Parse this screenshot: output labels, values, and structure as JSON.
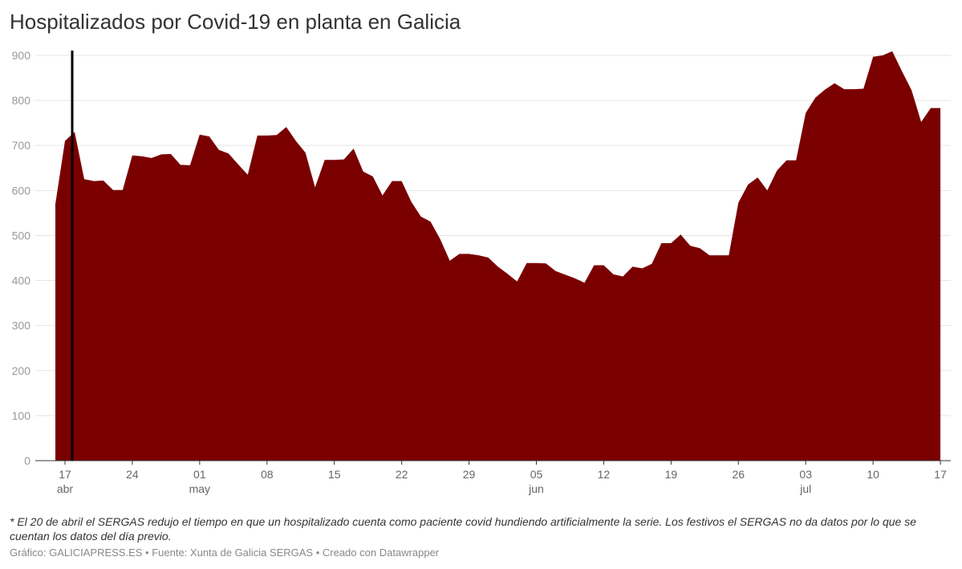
{
  "title": "Hospitalizados por Covid-19 en planta en Galicia",
  "note": "* El 20 de abril el SERGAS redujo el tiempo en que un hospitalizado cuenta como paciente covid hundiendo artificialmente la serie. Los festivos el SERGAS no da datos por lo que se cuentan los datos del día previo.",
  "credit": "Gráfico: GALICIAPRESS.ES • Fuente: Xunta de Galicia SERGAS • Creado con Datawrapper",
  "chart_data": {
    "type": "area",
    "title": "Hospitalizados por Covid-19 en planta en Galicia",
    "x_start": "16 abr",
    "x_end": "17 jul",
    "x_step": "1 día",
    "ylim": [
      0,
      900
    ],
    "yticks": [
      0,
      100,
      200,
      300,
      400,
      500,
      600,
      700,
      800,
      900
    ],
    "grid": true,
    "color": "#7a0000",
    "xticks": [
      {
        "day": 1,
        "label": "17",
        "month": "abr"
      },
      {
        "day": 8,
        "label": "24",
        "month": ""
      },
      {
        "day": 15,
        "label": "01",
        "month": "may"
      },
      {
        "day": 22,
        "label": "08",
        "month": ""
      },
      {
        "day": 29,
        "label": "15",
        "month": ""
      },
      {
        "day": 36,
        "label": "22",
        "month": ""
      },
      {
        "day": 43,
        "label": "29",
        "month": ""
      },
      {
        "day": 50,
        "label": "05",
        "month": "jun"
      },
      {
        "day": 57,
        "label": "12",
        "month": ""
      },
      {
        "day": 64,
        "label": "19",
        "month": ""
      },
      {
        "day": 71,
        "label": "26",
        "month": ""
      },
      {
        "day": 78,
        "label": "03",
        "month": "jul"
      },
      {
        "day": 85,
        "label": "10",
        "month": ""
      },
      {
        "day": 92,
        "label": "17",
        "month": ""
      }
    ],
    "values": [
      570,
      710,
      730,
      625,
      621,
      622,
      601,
      601,
      678,
      676,
      672,
      680,
      681,
      657,
      656,
      724,
      720,
      690,
      682,
      658,
      635,
      722,
      722,
      723,
      741,
      710,
      684,
      607,
      668,
      668,
      669,
      693,
      642,
      631,
      589,
      621,
      621,
      575,
      542,
      531,
      492,
      444,
      459,
      459,
      456,
      451,
      431,
      415,
      398,
      439,
      439,
      438,
      421,
      413,
      405,
      395,
      434,
      434,
      414,
      409,
      431,
      427,
      437,
      483,
      483,
      502,
      477,
      472,
      456,
      456,
      456,
      573,
      613,
      629,
      600,
      644,
      667,
      667,
      772,
      806,
      824,
      838,
      825,
      825,
      826,
      897,
      900,
      909,
      865,
      823,
      752,
      783,
      783
    ]
  }
}
